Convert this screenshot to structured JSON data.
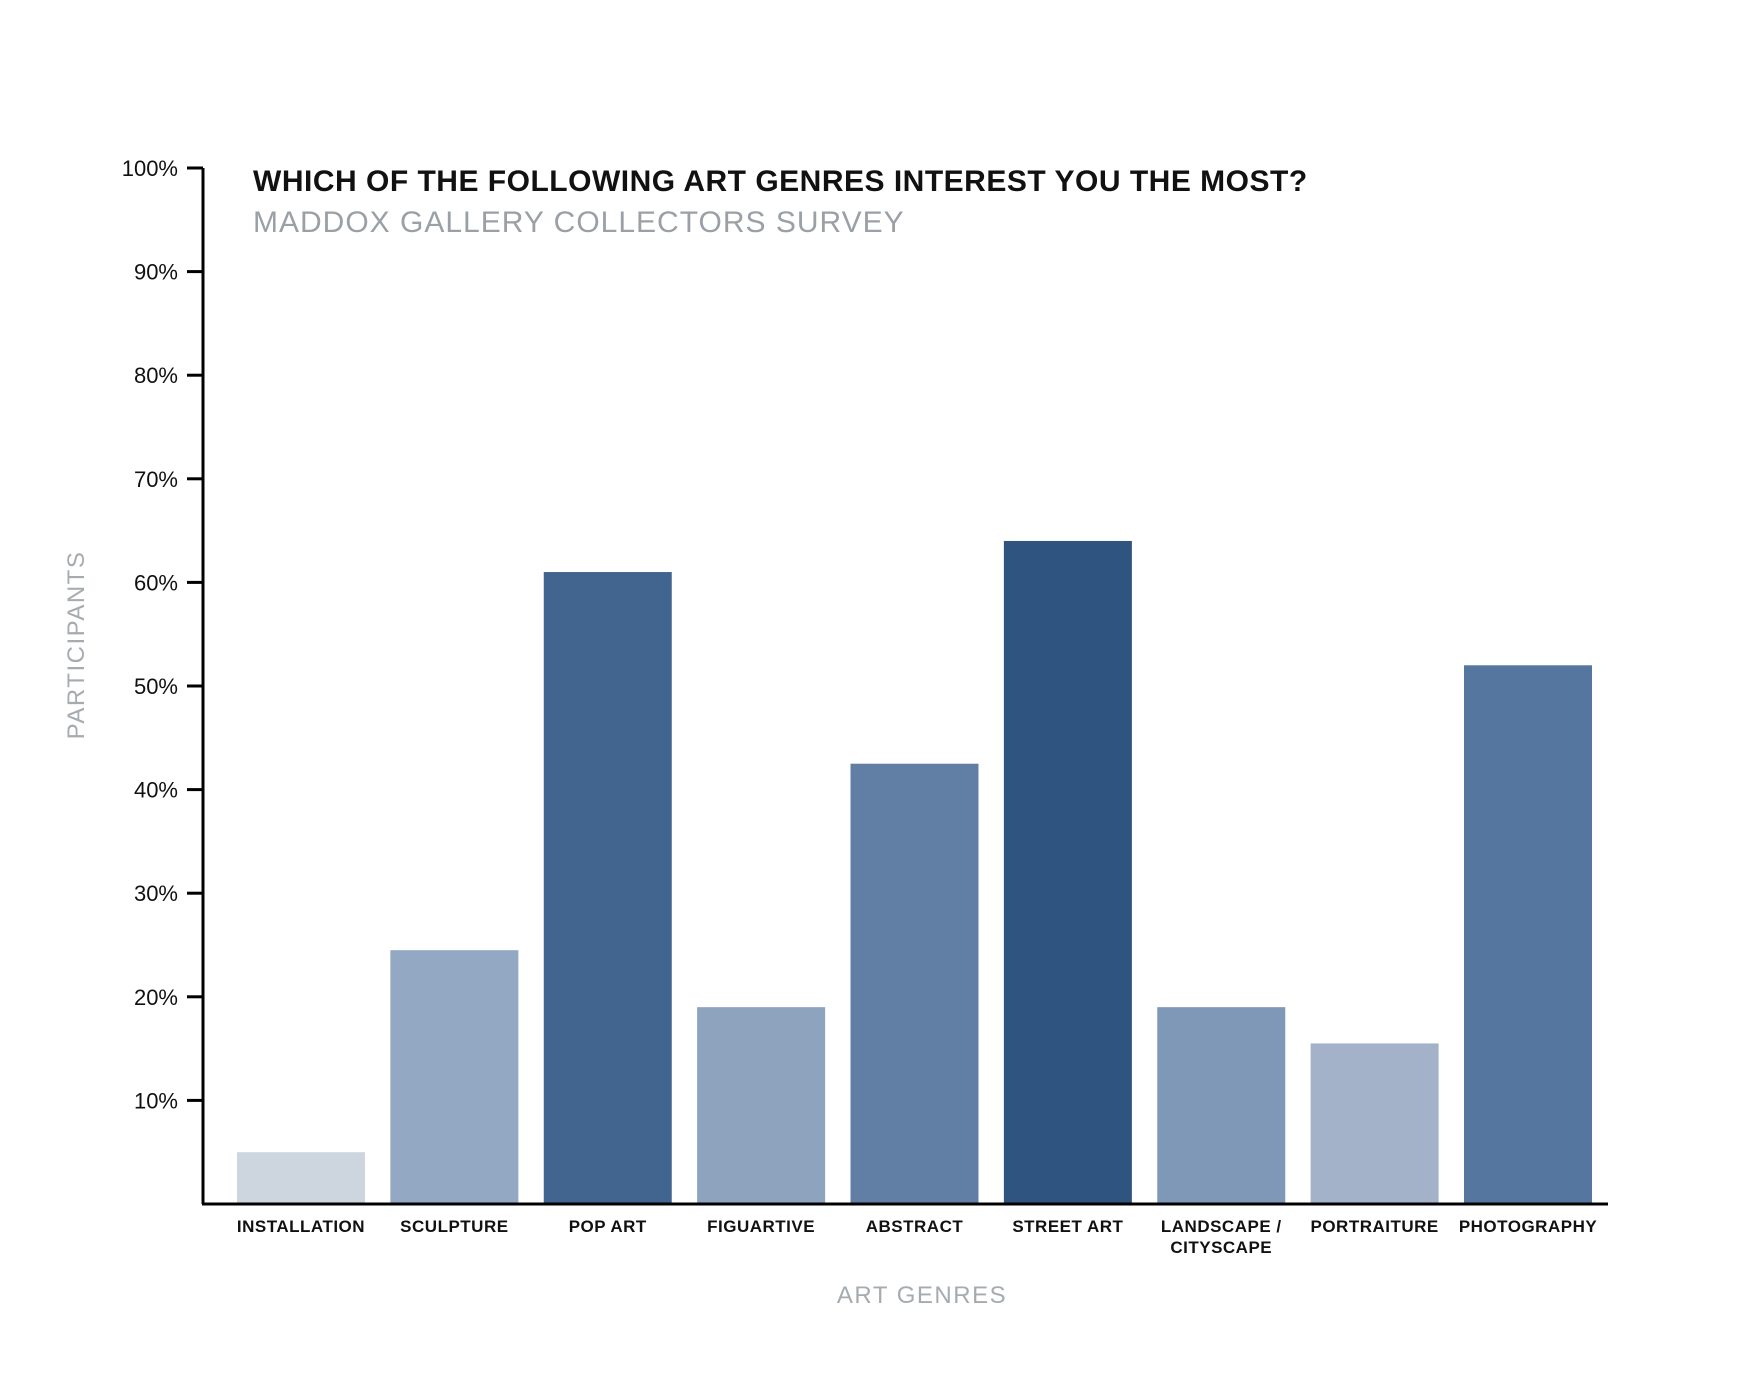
{
  "chart_data": {
    "type": "bar",
    "title": "WHICH OF THE FOLLOWING ART GENRES INTEREST YOU THE MOST?",
    "subtitle": "MADDOX GALLERY COLLECTORS SURVEY",
    "xlabel": "ART GENRES",
    "ylabel": "PARTICIPANTS",
    "ylim": [
      0,
      100
    ],
    "yticks": [
      10,
      20,
      30,
      40,
      50,
      60,
      70,
      80,
      90,
      100
    ],
    "ytick_labels": [
      "10%",
      "20%",
      "30%",
      "40%",
      "50%",
      "60%",
      "70%",
      "80%",
      "90%",
      "100%"
    ],
    "categories": [
      [
        "INSTALLATION"
      ],
      [
        "SCULPTURE"
      ],
      [
        "POP ART"
      ],
      [
        "FIGUARTIVE"
      ],
      [
        "ABSTRACT"
      ],
      [
        "STREET ART"
      ],
      [
        "LANDSCAPE /",
        "CITYSCAPE"
      ],
      [
        "PORTRAITURE"
      ],
      [
        "PHOTOGRAPHY"
      ]
    ],
    "values": [
      5,
      24.5,
      61,
      19,
      42.5,
      64,
      19,
      15.5,
      52
    ],
    "bar_colors": [
      "#cdd5df",
      "#93a8c2",
      "#41658f",
      "#8ea3bd",
      "#617fa5",
      "#2f5480",
      "#8098b8",
      "#a3b2c9",
      "#55769f"
    ],
    "grid": false,
    "legend": "none"
  }
}
